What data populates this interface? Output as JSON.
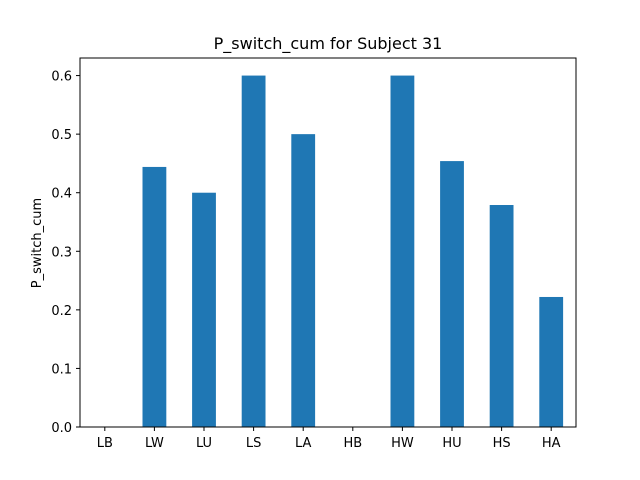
{
  "chart_data": {
    "type": "bar",
    "title": "P_switch_cum for Subject 31",
    "xlabel": "",
    "ylabel": "P_switch_cum",
    "categories": [
      "LB",
      "LW",
      "LU",
      "LS",
      "LA",
      "HB",
      "HW",
      "HU",
      "HS",
      "HA"
    ],
    "values": [
      0.0,
      0.444,
      0.4,
      0.6,
      0.5,
      0.0,
      0.6,
      0.454,
      0.379,
      0.222
    ],
    "ylim": [
      0,
      0.63
    ],
    "yticks": [
      "0.0",
      "0.1",
      "0.2",
      "0.3",
      "0.4",
      "0.5",
      "0.6"
    ],
    "bar_color": "#1f77b4",
    "grid": false,
    "legend": "none"
  }
}
